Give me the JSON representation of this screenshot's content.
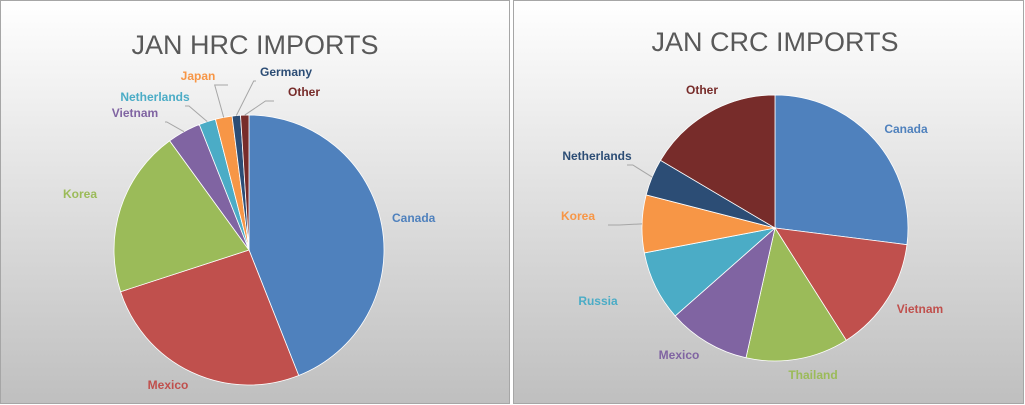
{
  "chart_data": [
    {
      "type": "pie",
      "title": "JAN HRC IMPORTS",
      "categories": [
        "Canada",
        "Mexico",
        "Korea",
        "Vietnam",
        "Netherlands",
        "Japan",
        "Germany",
        "Other"
      ],
      "values": [
        44,
        26,
        20,
        4,
        2,
        2,
        1,
        1
      ],
      "colors": [
        "#4f81bd",
        "#c0504d",
        "#9bbb59",
        "#8064a2",
        "#4bacc6",
        "#f79646",
        "#2c4d75",
        "#772c2a"
      ]
    },
    {
      "type": "pie",
      "title": "JAN CRC IMPORTS",
      "categories": [
        "Canada",
        "Vietnam",
        "Thailand",
        "Mexico",
        "Russia",
        "Korea",
        "Netherlands",
        "Other"
      ],
      "values": [
        27,
        14,
        12.5,
        10,
        8.5,
        7,
        4.5,
        16.5
      ],
      "colors": [
        "#4f81bd",
        "#c0504d",
        "#9bbb59",
        "#8064a2",
        "#4bacc6",
        "#f79646",
        "#2c4d75",
        "#772c2a"
      ]
    }
  ]
}
